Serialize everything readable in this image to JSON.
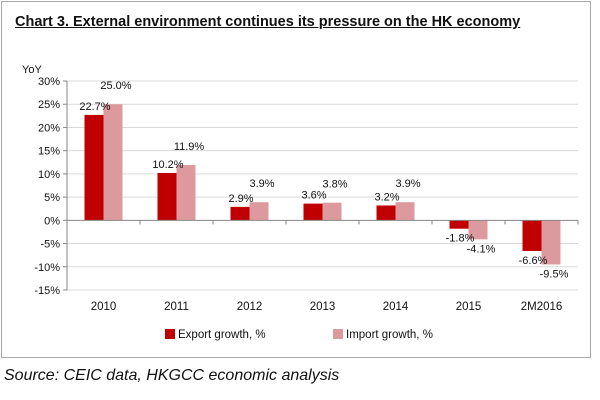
{
  "title": "Chart 3. External environment continues its pressure on the HK economy",
  "source": "Source: CEIC data, HKGCC economic analysis",
  "colors": {
    "export": "#c00000",
    "import": "#dc9a9e",
    "axis": "#868686",
    "grid": "#d9d9d9"
  },
  "chart_data": {
    "type": "bar",
    "ylabel": "YoY",
    "categories": [
      "2010",
      "2011",
      "2012",
      "2013",
      "2014",
      "2015",
      "2M2016"
    ],
    "series": [
      {
        "name": "Export growth, %",
        "values": [
          22.7,
          10.2,
          2.9,
          3.6,
          3.2,
          -1.8,
          -6.6
        ],
        "labels": [
          "22.7%",
          "10.2%",
          "2.9%",
          "3.6%",
          "3.2%",
          "-1.8%",
          "-6.6%"
        ]
      },
      {
        "name": "Import growth, %",
        "values": [
          25.0,
          11.9,
          3.9,
          3.8,
          3.9,
          -4.1,
          -9.5
        ],
        "labels": [
          "25.0%",
          "11.9%",
          "3.9%",
          "3.8%",
          "3.9%",
          "-4.1%",
          "-9.5%"
        ]
      }
    ],
    "ylim": [
      -15,
      30
    ],
    "yticks": [
      30,
      25,
      20,
      15,
      10,
      5,
      0,
      -5,
      -10,
      -15
    ],
    "ytick_labels": [
      "30%",
      "25%",
      "20%",
      "15%",
      "10%",
      "5%",
      "0%",
      "-5%",
      "-10%",
      "-15%"
    ],
    "grid": true,
    "legend": "bottom-center"
  }
}
